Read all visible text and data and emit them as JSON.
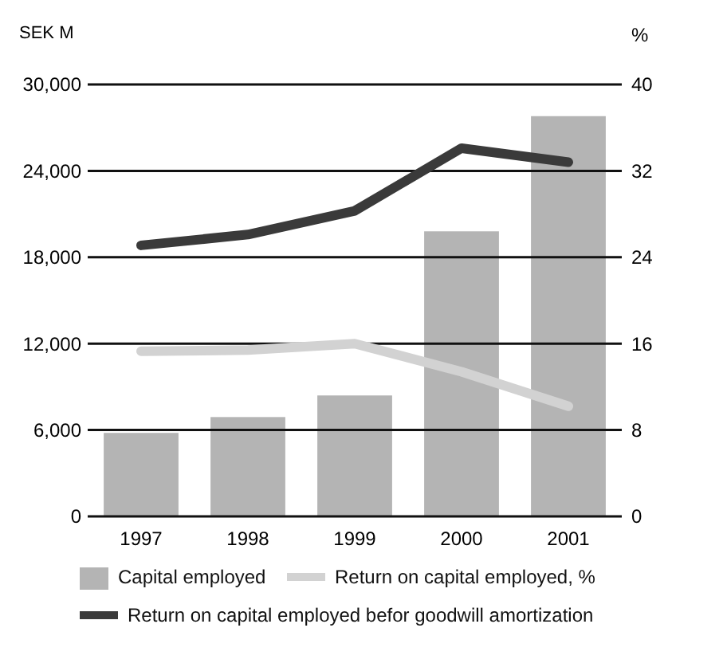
{
  "chart_data": {
    "type": "bar",
    "ylabel": "SEK M",
    "y2label": "%",
    "categories": [
      "1997",
      "1998",
      "1999",
      "2000",
      "2001"
    ],
    "series": [
      {
        "name": "Capital employed",
        "color": "#b4b4b4",
        "values": [
          5800,
          6900,
          8400,
          19800,
          27800
        ]
      },
      {
        "name": "Return on capital employed, %",
        "type": "line",
        "axis": "y2",
        "color": "#d2d2d2",
        "values": [
          15.3,
          15.4,
          16,
          13.4,
          10.2
        ]
      },
      {
        "name": "Return on capital employed befor goodwill amortization",
        "type": "line",
        "axis": "y2",
        "color": "#3a3a3a",
        "values": [
          25.1,
          26.1,
          28.3,
          34.1,
          32.8
        ]
      }
    ],
    "ylim": [
      0,
      30000
    ],
    "yticks": [
      {
        "value": 0,
        "label": "0"
      },
      {
        "value": 6000,
        "label": "6,000"
      },
      {
        "value": 12000,
        "label": "12,000"
      },
      {
        "value": 18000,
        "label": "18,000"
      },
      {
        "value": 24000,
        "label": "24,000"
      },
      {
        "value": 30000,
        "label": "30,000"
      }
    ],
    "y2lim": [
      0,
      40
    ],
    "y2ticks": [
      0,
      8,
      16,
      24,
      32,
      40
    ],
    "grid": "y",
    "legend": "bottom"
  }
}
